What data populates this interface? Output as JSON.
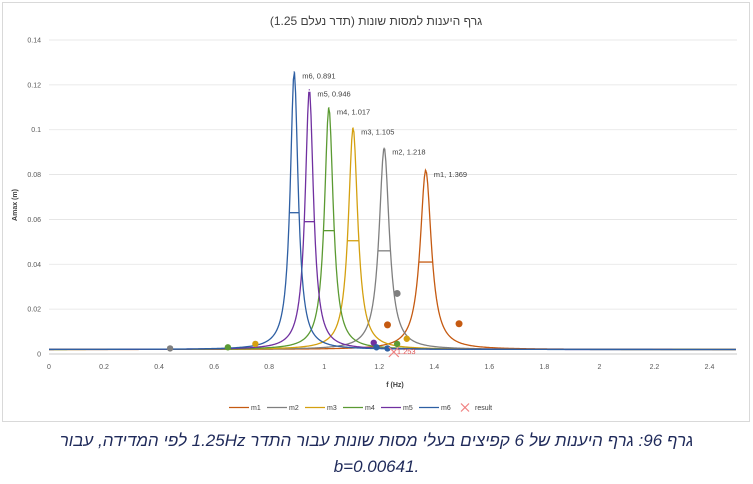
{
  "chart_data": {
    "type": "line",
    "title": "גרף היענות למסות שונות (תדר נעלם 1.25)",
    "xlabel": "f (Hz)",
    "ylabel": "Amax (m)",
    "xlim": [
      0,
      2.5
    ],
    "ylim": [
      0,
      0.14
    ],
    "x_ticks": [
      "0",
      "0.2",
      "0.4",
      "0.6",
      "0.8",
      "1",
      "1.2",
      "1.4",
      "1.6",
      "1.8",
      "2",
      "2.2",
      "2.4"
    ],
    "y_ticks": [
      "0",
      "0.02",
      "0.04",
      "0.06",
      "0.08",
      "0.1",
      "0.12",
      "0.14"
    ],
    "grid": "horizontal",
    "legend_position": "bottom",
    "series": [
      {
        "name": "m1",
        "color": "#c55a11",
        "f0": 1.369,
        "peak": 0.082,
        "baseline": 0.002,
        "label": "m1, 1.369"
      },
      {
        "name": "m2",
        "color": "#7f7f7f",
        "f0": 1.218,
        "peak": 0.092,
        "baseline": 0.002,
        "label": "m2, 1.218"
      },
      {
        "name": "m3",
        "color": "#d4a010",
        "f0": 1.105,
        "peak": 0.101,
        "baseline": 0.002,
        "label": "m3, 1.105"
      },
      {
        "name": "m4",
        "color": "#5b9a32",
        "f0": 1.017,
        "peak": 0.11,
        "baseline": 0.002,
        "label": "m4, 1.017"
      },
      {
        "name": "m5",
        "color": "#7030a0",
        "f0": 0.946,
        "peak": 0.118,
        "baseline": 0.002,
        "label": "m5, 0.946"
      },
      {
        "name": "m6",
        "color": "#2e5fa3",
        "f0": 0.891,
        "peak": 0.126,
        "baseline": 0.002,
        "label": "m6, 0.891"
      }
    ],
    "result": {
      "name": "result",
      "color": "#f08080",
      "x": 1.253,
      "y": 0.0,
      "label": "1.253"
    },
    "measured_points": [
      {
        "series": "m1",
        "x": 1.49,
        "y": 0.0135
      },
      {
        "series": "m2",
        "x": 1.265,
        "y": 0.027
      },
      {
        "series": "m2",
        "x": 0.44,
        "y": 0.0025
      },
      {
        "series": "m3",
        "x": 0.75,
        "y": 0.0045
      },
      {
        "series": "m3",
        "x": 1.3,
        "y": 0.0068
      },
      {
        "series": "m1",
        "x": 1.23,
        "y": 0.013
      },
      {
        "series": "m4",
        "x": 1.265,
        "y": 0.0045
      },
      {
        "series": "m4",
        "x": 0.65,
        "y": 0.003
      },
      {
        "series": "m5",
        "x": 1.18,
        "y": 0.005
      },
      {
        "series": "m6",
        "x": 1.23,
        "y": 0.0025
      },
      {
        "series": "m6",
        "x": 1.19,
        "y": 0.003
      }
    ]
  },
  "caption": {
    "line1": "גרף 96: גרף היענות של 6 קפיצים בעלי מסות שונות עבור התדר 1.25Hz לפי המדידה, עבור",
    "line2": ".b=0.00641"
  }
}
